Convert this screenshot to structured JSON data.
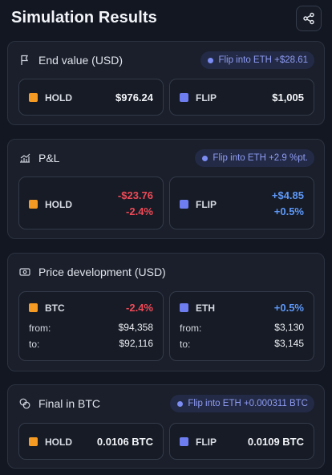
{
  "header": {
    "title": "Simulation Results",
    "share_icon": "share-icon"
  },
  "end_value": {
    "title": "End value (USD)",
    "icon": "flag-icon",
    "badge": "Flip into ETH +$28.61",
    "hold": {
      "label": "HOLD",
      "value": "$976.24"
    },
    "flip": {
      "label": "FLIP",
      "value": "$1,005"
    }
  },
  "pnl": {
    "title": "P&L",
    "icon": "chart-icon",
    "badge": "Flip into ETH +2.9 %pt.",
    "hold": {
      "label": "HOLD",
      "value": "-$23.76",
      "pct": "-2.4%"
    },
    "flip": {
      "label": "FLIP",
      "value": "+$4.85",
      "pct": "+0.5%"
    }
  },
  "price": {
    "title": "Price development (USD)",
    "icon": "banknote-icon",
    "btc": {
      "label": "BTC",
      "change": "-2.4%",
      "from_label": "from:",
      "from": "$94,358",
      "to_label": "to:",
      "to": "$92,116"
    },
    "eth": {
      "label": "ETH",
      "change": "+0.5%",
      "from_label": "from:",
      "from": "$3,130",
      "to_label": "to:",
      "to": "$3,145"
    }
  },
  "final_btc": {
    "title": "Final in BTC",
    "icon": "coins-icon",
    "badge": "Flip into ETH +0.000311 BTC",
    "hold": {
      "label": "HOLD",
      "value": "0.0106 BTC"
    },
    "flip": {
      "label": "FLIP",
      "value": "0.0109 BTC"
    }
  },
  "colors": {
    "hold": "#f59a23",
    "flip": "#6e7df0",
    "negative": "#ef4a57",
    "positive": "#5e98f8"
  }
}
